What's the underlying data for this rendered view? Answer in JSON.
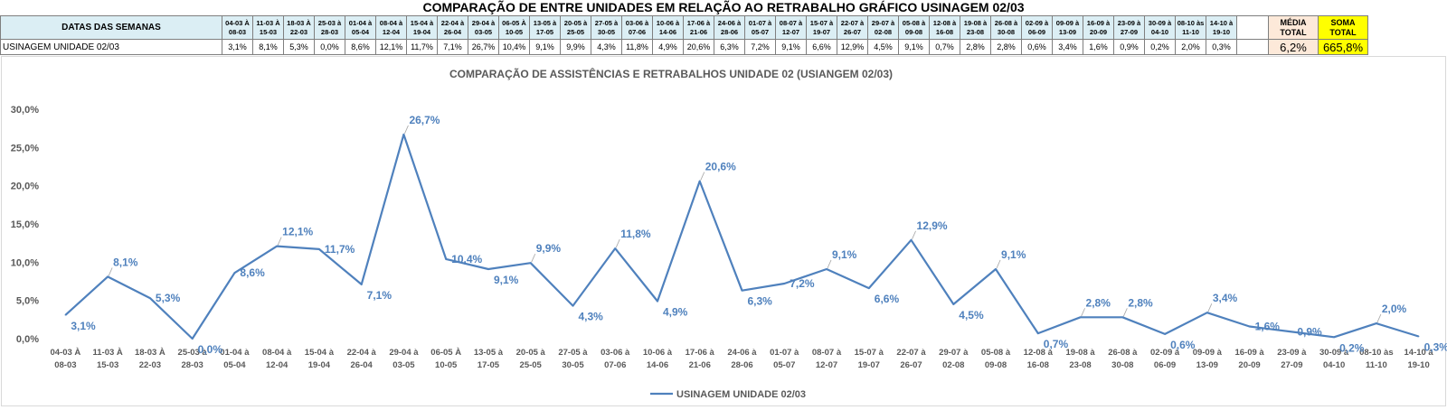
{
  "table": {
    "title": "COMPARAÇÃO DE ENTRE UNIDADES EM RELAÇÃO AO RETRABALHO GRÁFICO USINAGEM 02/03",
    "header_label": "DATAS DAS SEMANAS",
    "row_label": "USINAGEM UNIDADE 02/03",
    "weeks": [
      [
        "04-03 À",
        "08-03"
      ],
      [
        "11-03 À",
        "15-03"
      ],
      [
        "18-03 À",
        "22-03"
      ],
      [
        "25-03 à",
        "28-03"
      ],
      [
        "01-04 à",
        "05-04"
      ],
      [
        "08-04 à",
        "12-04"
      ],
      [
        "15-04 à",
        "19-04"
      ],
      [
        "22-04 à",
        "26-04"
      ],
      [
        "29-04 à",
        "03-05"
      ],
      [
        "06-05 À",
        "10-05"
      ],
      [
        "13-05 à",
        "17-05"
      ],
      [
        "20-05 à",
        "25-05"
      ],
      [
        "27-05 à",
        "30-05"
      ],
      [
        "03-06 à",
        "07-06"
      ],
      [
        "10-06 à",
        "14-06"
      ],
      [
        "17-06 à",
        "21-06"
      ],
      [
        "24-06 à",
        "28-06"
      ],
      [
        "01-07 à",
        "05-07"
      ],
      [
        "08-07 à",
        "12-07"
      ],
      [
        "15-07 à",
        "19-07"
      ],
      [
        "22-07 à",
        "26-07"
      ],
      [
        "29-07 à",
        "02-08"
      ],
      [
        "05-08 à",
        "09-08"
      ],
      [
        "12-08 à",
        "16-08"
      ],
      [
        "19-08 à",
        "23-08"
      ],
      [
        "26-08 à",
        "30-08"
      ],
      [
        "02-09 à",
        "06-09"
      ],
      [
        "09-09 à",
        "13-09"
      ],
      [
        "16-09 à",
        "20-09"
      ],
      [
        "23-09 à",
        "27-09"
      ],
      [
        "30-09 à",
        "04-10"
      ],
      [
        "08-10 às",
        "11-10"
      ],
      [
        "14-10 à",
        "19-10"
      ]
    ],
    "values": [
      "3,1%",
      "8,1%",
      "5,3%",
      "0,0%",
      "8,6%",
      "12,1%",
      "11,7%",
      "7,1%",
      "26,7%",
      "10,4%",
      "9,1%",
      "9,9%",
      "4,3%",
      "11,8%",
      "4,9%",
      "20,6%",
      "6,3%",
      "7,2%",
      "9,1%",
      "6,6%",
      "12,9%",
      "4,5%",
      "9,1%",
      "0,7%",
      "2,8%",
      "2,8%",
      "0,6%",
      "3,4%",
      "1,6%",
      "0,9%",
      "0,2%",
      "2,0%",
      "0,3%"
    ],
    "media_header": [
      "MÉDIA",
      "TOTAL"
    ],
    "soma_header": [
      "SOMA",
      "TOTAL"
    ],
    "media_value": "6,2%",
    "soma_value": "665,8%"
  },
  "chart_data": {
    "type": "line",
    "title": "COMPARAÇÃO DE ASSISTÊNCIAS E RETRABALHOS UNIDADE 02  (USIANGEM 02/03)",
    "categories": [
      [
        "04-03 À",
        "08-03"
      ],
      [
        "11-03 À",
        "15-03"
      ],
      [
        "18-03 À",
        "22-03"
      ],
      [
        "25-03 à",
        "28-03"
      ],
      [
        "01-04 à",
        "05-04"
      ],
      [
        "08-04 à",
        "12-04"
      ],
      [
        "15-04 à",
        "19-04"
      ],
      [
        "22-04 à",
        "26-04"
      ],
      [
        "29-04 à",
        "03-05"
      ],
      [
        "06-05 À",
        "10-05"
      ],
      [
        "13-05 à",
        "17-05"
      ],
      [
        "20-05 à",
        "25-05"
      ],
      [
        "27-05 à",
        "30-05"
      ],
      [
        "03-06 à",
        "07-06"
      ],
      [
        "10-06 à",
        "14-06"
      ],
      [
        "17-06 à",
        "21-06"
      ],
      [
        "24-06 à",
        "28-06"
      ],
      [
        "01-07 à",
        "05-07"
      ],
      [
        "08-07 à",
        "12-07"
      ],
      [
        "15-07 à",
        "19-07"
      ],
      [
        "22-07 à",
        "26-07"
      ],
      [
        "29-07 à",
        "02-08"
      ],
      [
        "05-08 à",
        "09-08"
      ],
      [
        "12-08 à",
        "16-08"
      ],
      [
        "19-08 à",
        "23-08"
      ],
      [
        "26-08 à",
        "30-08"
      ],
      [
        "02-09 à",
        "06-09"
      ],
      [
        "09-09 à",
        "13-09"
      ],
      [
        "16-09 à",
        "20-09"
      ],
      [
        "23-09 à",
        "27-09"
      ],
      [
        "30-09 à",
        "04-10"
      ],
      [
        "08-10 às",
        "11-10"
      ],
      [
        "14-10 à",
        "19-10"
      ]
    ],
    "series": [
      {
        "name": "USINAGEM UNIDADE 02/03",
        "color": "#4f81bd",
        "values": [
          3.1,
          8.1,
          5.3,
          0.0,
          8.6,
          12.1,
          11.7,
          7.1,
          26.7,
          10.4,
          9.1,
          9.9,
          4.3,
          11.8,
          4.9,
          20.6,
          6.3,
          7.2,
          9.1,
          6.6,
          12.9,
          4.5,
          9.1,
          0.7,
          2.8,
          2.8,
          0.6,
          3.4,
          1.6,
          0.9,
          0.2,
          2.0,
          0.3
        ],
        "labels": [
          "3,1%",
          "8,1%",
          "5,3%",
          "0,0%",
          "8,6%",
          "12,1%",
          "11,7%",
          "7,1%",
          "26,7%",
          "10,4%",
          "9,1%",
          "9,9%",
          "4,3%",
          "11,8%",
          "4,9%",
          "20,6%",
          "6,3%",
          "7,2%",
          "9,1%",
          "6,6%",
          "12,9%",
          "4,5%",
          "9,1%",
          "0,7%",
          "2,8%",
          "2,8%",
          "0,6%",
          "3,4%",
          "1,6%",
          "0,9%",
          "0,2%",
          "2,0%",
          "0,3%"
        ]
      }
    ],
    "ylim": [
      0,
      30
    ],
    "yticks": [
      "0,0%",
      "5,0%",
      "10,0%",
      "15,0%",
      "20,0%",
      "25,0%",
      "30,0%"
    ],
    "grid": false,
    "legend": "bottom"
  }
}
